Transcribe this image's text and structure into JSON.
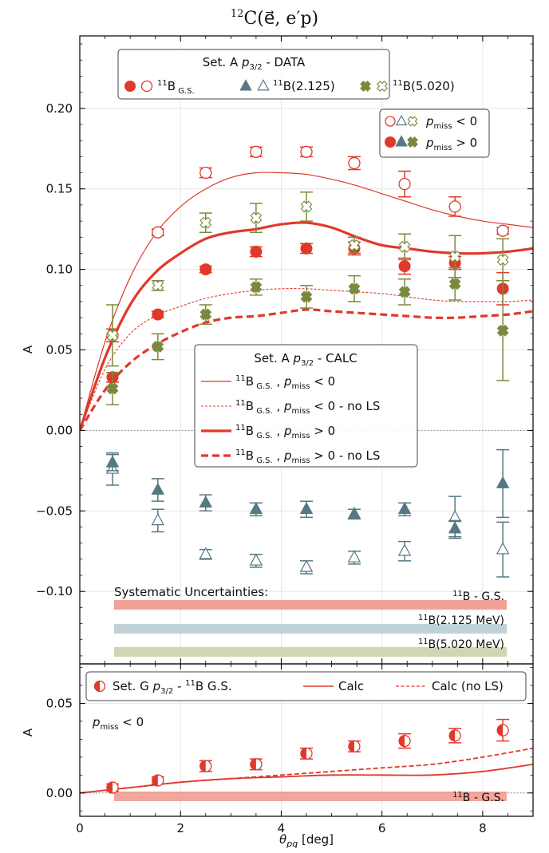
{
  "figure_title": "12C(e⃗, e′p)",
  "figure_title_sup": "12",
  "figure_title_rest": "C(e⃗, e′p)",
  "chart_data": [
    {
      "type": "scatter",
      "panel": "top",
      "ylabel": "A",
      "xlim": [
        0,
        9
      ],
      "ylim": [
        -0.145,
        0.245
      ],
      "xticks": [
        0,
        2,
        4,
        6,
        8
      ],
      "yticks": [
        -0.1,
        -0.05,
        0.0,
        0.05,
        0.1,
        0.15,
        0.2
      ],
      "ytick_labels": [
        "−0.10",
        "−0.05",
        "0.00",
        "0.05",
        "0.10",
        "0.15",
        "0.20"
      ],
      "grid": true,
      "legend_data": {
        "title": "Set. A p3/2 - DATA",
        "entries": [
          "11B G.S.",
          "11B(2.125)",
          "11B(5.020)"
        ],
        "sign_entries": [
          "pmiss < 0",
          "pmiss > 0"
        ]
      },
      "legend_calc": {
        "title": "Set. A p3/2 - CALC",
        "entries": [
          "11B G.S. , pmiss < 0",
          "11B G.S. , pmiss < 0 - no LS",
          "11B G.S. , pmiss > 0",
          "11B G.S. , pmiss > 0 - no LS"
        ]
      },
      "systematics": {
        "title": "Systematic Uncertainties:",
        "bands": [
          {
            "label": "11B - G.S.",
            "color": "#f1978b"
          },
          {
            "label": "11B(2.125 MeV)",
            "color": "#b9cdd4"
          },
          {
            "label": "11B(5.020 MeV)",
            "color": "#cbd2ab"
          }
        ]
      },
      "colors": {
        "gs": "#e0392b",
        "s2125": "#567883",
        "s5020": "#7a8a3c"
      },
      "series": [
        {
          "name": "11B G.S. pmiss<0",
          "marker": "circle-open",
          "color": "#e0392b",
          "x": [
            0.65,
            1.55,
            2.5,
            3.5,
            4.5,
            5.45,
            6.45,
            7.45,
            8.4
          ],
          "y": [
            0.059,
            0.123,
            0.16,
            0.173,
            0.173,
            0.166,
            0.153,
            0.139,
            0.124
          ],
          "err": [
            0.004,
            0.002,
            0.003,
            0.003,
            0.003,
            0.004,
            0.008,
            0.006,
            0.002
          ]
        },
        {
          "name": "11B G.S. pmiss>0",
          "marker": "circle-filled",
          "color": "#e0392b",
          "x": [
            0.65,
            1.55,
            2.5,
            3.5,
            4.5,
            5.45,
            6.45,
            7.45,
            8.4
          ],
          "y": [
            0.033,
            0.072,
            0.1,
            0.111,
            0.113,
            0.113,
            0.102,
            0.104,
            0.088
          ],
          "err": [
            0.003,
            0.002,
            0.002,
            0.003,
            0.003,
            0.004,
            0.005,
            0.004,
            0.01
          ]
        },
        {
          "name": "11B(2.125) pmiss<0",
          "marker": "triangle-open",
          "color": "#567883",
          "x": [
            0.65,
            1.55,
            2.5,
            3.5,
            4.5,
            5.45,
            6.45,
            7.45,
            8.4
          ],
          "y": [
            -0.024,
            -0.056,
            -0.077,
            -0.081,
            -0.085,
            -0.079,
            -0.075,
            -0.054,
            -0.074
          ],
          "err": [
            0.01,
            0.007,
            0.003,
            0.004,
            0.004,
            0.004,
            0.006,
            0.013,
            0.017
          ]
        },
        {
          "name": "11B(2.125) pmiss>0",
          "marker": "triangle-filled",
          "color": "#567883",
          "x": [
            0.65,
            1.55,
            2.5,
            3.5,
            4.5,
            5.45,
            6.45,
            7.45,
            8.4
          ],
          "y": [
            -0.02,
            -0.037,
            -0.045,
            -0.049,
            -0.049,
            -0.052,
            -0.049,
            -0.061,
            -0.033
          ],
          "err": [
            0.005,
            0.007,
            0.005,
            0.004,
            0.005,
            0.003,
            0.004,
            0.005,
            0.021
          ]
        },
        {
          "name": "11B(5.020) pmiss<0",
          "marker": "x-open",
          "color": "#7a8a3c",
          "x": [
            0.65,
            1.55,
            2.5,
            3.5,
            4.5,
            5.45,
            6.45,
            7.45,
            8.4
          ],
          "y": [
            0.059,
            0.09,
            0.129,
            0.132,
            0.139,
            0.115,
            0.114,
            0.108,
            0.106
          ],
          "err": [
            0.019,
            0.003,
            0.006,
            0.009,
            0.009,
            0.005,
            0.008,
            0.013,
            0.013
          ]
        },
        {
          "name": "11B(5.020) pmiss>0",
          "marker": "x-filled",
          "color": "#7a8a3c",
          "x": [
            0.65,
            1.55,
            2.5,
            3.5,
            4.5,
            5.45,
            6.45,
            7.45,
            8.4
          ],
          "y": [
            0.026,
            0.052,
            0.072,
            0.089,
            0.083,
            0.088,
            0.086,
            0.091,
            0.062
          ],
          "err": [
            0.01,
            0.008,
            0.006,
            0.005,
            0.007,
            0.008,
            0.008,
            0.01,
            0.031
          ]
        }
      ],
      "curves": [
        {
          "name": "11B G.S. , pmiss < 0",
          "style": "thin-solid",
          "color": "#e0392b",
          "x": [
            0,
            0.5,
            1,
            1.5,
            2,
            2.5,
            3,
            3.5,
            4,
            4.5,
            5,
            5.5,
            6,
            6.5,
            7,
            7.5,
            8,
            8.5,
            9
          ],
          "y": [
            0,
            0.055,
            0.095,
            0.122,
            0.139,
            0.15,
            0.157,
            0.16,
            0.16,
            0.159,
            0.156,
            0.152,
            0.147,
            0.142,
            0.137,
            0.133,
            0.13,
            0.128,
            0.126
          ]
        },
        {
          "name": "11B G.S. , pmiss < 0 - no LS",
          "style": "thin-dashed",
          "color": "#e0392b",
          "x": [
            0,
            0.5,
            1,
            1.5,
            2,
            2.5,
            3,
            3.5,
            4,
            4.5,
            5,
            5.5,
            6,
            6.5,
            7,
            7.5,
            8,
            8.5,
            9
          ],
          "y": [
            0,
            0.038,
            0.06,
            0.071,
            0.077,
            0.082,
            0.085,
            0.087,
            0.088,
            0.088,
            0.087,
            0.086,
            0.085,
            0.083,
            0.081,
            0.08,
            0.08,
            0.08,
            0.081
          ]
        },
        {
          "name": "11B G.S. , pmiss > 0",
          "style": "thick-solid",
          "color": "#e0392b",
          "x": [
            0,
            0.5,
            1,
            1.5,
            2,
            2.5,
            3,
            3.5,
            4,
            4.5,
            5,
            5.5,
            6,
            6.5,
            7,
            7.5,
            8,
            8.5,
            9
          ],
          "y": [
            0,
            0.045,
            0.078,
            0.098,
            0.11,
            0.119,
            0.123,
            0.125,
            0.128,
            0.129,
            0.126,
            0.12,
            0.115,
            0.113,
            0.111,
            0.11,
            0.11,
            0.111,
            0.113
          ]
        },
        {
          "name": "11B G.S. , pmiss > 0 - no LS",
          "style": "thick-dashed",
          "color": "#e0392b",
          "x": [
            0,
            0.5,
            1,
            1.5,
            2,
            2.5,
            3,
            3.5,
            4,
            4.5,
            5,
            5.5,
            6,
            6.5,
            7,
            7.5,
            8,
            8.5,
            9
          ],
          "y": [
            0,
            0.025,
            0.042,
            0.053,
            0.061,
            0.067,
            0.07,
            0.071,
            0.073,
            0.075,
            0.074,
            0.073,
            0.072,
            0.071,
            0.07,
            0.07,
            0.071,
            0.072,
            0.074
          ]
        }
      ]
    },
    {
      "type": "scatter",
      "panel": "bottom",
      "ylabel": "A",
      "xlabel": "θpq [deg]",
      "xlim": [
        0,
        9
      ],
      "ylim": [
        -0.013,
        0.072
      ],
      "xticks": [
        0,
        2,
        4,
        6,
        8
      ],
      "yticks": [
        0.0,
        0.05
      ],
      "ytick_labels": [
        "0.00",
        "0.05"
      ],
      "grid": true,
      "annotation": "pmiss < 0",
      "legend": {
        "entries": [
          "Set. G p3/2 - 11B G.S.",
          "Calc",
          "Calc (no LS)"
        ]
      },
      "systematics": {
        "bands": [
          {
            "label": "11B - G.S.",
            "color": "#f1978b"
          }
        ]
      },
      "series": [
        {
          "name": "Set. G p3/2 - 11B G.S.",
          "marker": "circle-half",
          "color": "#e0392b",
          "x": [
            0.65,
            1.55,
            2.5,
            3.5,
            4.5,
            5.45,
            6.45,
            7.45,
            8.4
          ],
          "y": [
            0.003,
            0.007,
            0.015,
            0.016,
            0.022,
            0.026,
            0.029,
            0.032,
            0.035
          ],
          "err": [
            0.002,
            0.002,
            0.003,
            0.003,
            0.003,
            0.003,
            0.004,
            0.004,
            0.006
          ]
        }
      ],
      "curves": [
        {
          "name": "Calc",
          "style": "solid",
          "color": "#e0392b",
          "x": [
            0,
            1,
            2,
            3,
            4,
            5,
            6,
            7,
            8,
            9
          ],
          "y": [
            0,
            0.003,
            0.006,
            0.008,
            0.009,
            0.01,
            0.01,
            0.01,
            0.012,
            0.016
          ]
        },
        {
          "name": "Calc (no LS)",
          "style": "dashed",
          "color": "#e0392b",
          "x": [
            0,
            1,
            2,
            3,
            4,
            5,
            6,
            7,
            8,
            9
          ],
          "y": [
            0,
            0.003,
            0.006,
            0.008,
            0.01,
            0.012,
            0.014,
            0.016,
            0.02,
            0.025
          ]
        }
      ]
    }
  ]
}
